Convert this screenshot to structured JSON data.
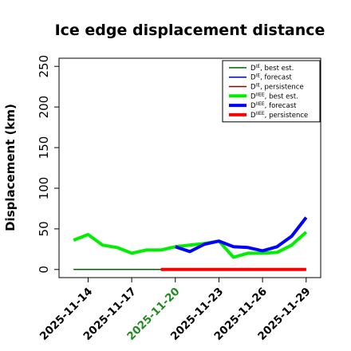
{
  "chart_data": {
    "type": "line",
    "title": "Ice edge displacement distance",
    "xlabel": "",
    "ylabel": "Displacement (km)",
    "x_dates": [
      "2025-11-13",
      "2025-11-14",
      "2025-11-15",
      "2025-11-16",
      "2025-11-17",
      "2025-11-18",
      "2025-11-19",
      "2025-11-20",
      "2025-11-21",
      "2025-11-22",
      "2025-11-23",
      "2025-11-24",
      "2025-11-25",
      "2025-11-26",
      "2025-11-27",
      "2025-11-28",
      "2025-11-29"
    ],
    "xlim": [
      "2025-11-12",
      "2025-11-30"
    ],
    "ylim": [
      -10,
      260
    ],
    "yticks": [
      0,
      50,
      100,
      150,
      200,
      250
    ],
    "xticks": [
      {
        "date": "2025-11-14",
        "label": "2025-11-14",
        "color": "#000000"
      },
      {
        "date": "2025-11-17",
        "label": "2025-11-17",
        "color": "#000000"
      },
      {
        "date": "2025-11-20",
        "label": "2025-11-20",
        "color": "#228b22"
      },
      {
        "date": "2025-11-23",
        "label": "2025-11-23",
        "color": "#000000"
      },
      {
        "date": "2025-11-26",
        "label": "2025-11-26",
        "color": "#000000"
      },
      {
        "date": "2025-11-29",
        "label": "2025-11-29",
        "color": "#000000"
      }
    ],
    "legend_position": "top-right",
    "series": [
      {
        "key": "die_best",
        "name_base": "D",
        "name_sup": "IE",
        "name_rest": ", best est.",
        "color": "#006400",
        "width": 1.5,
        "x": [
          "2025-11-13",
          "2025-11-14",
          "2025-11-15",
          "2025-11-16",
          "2025-11-17",
          "2025-11-18",
          "2025-11-19",
          "2025-11-20"
        ],
        "y": [
          0,
          0,
          0,
          0,
          0,
          0,
          0,
          0
        ]
      },
      {
        "key": "die_fc",
        "name_base": "D",
        "name_sup": "IE",
        "name_rest": ", forecast",
        "color": "#0000cd",
        "width": 1.5,
        "x": [
          "2025-11-20",
          "2025-11-21",
          "2025-11-22",
          "2025-11-23",
          "2025-11-24",
          "2025-11-25",
          "2025-11-26",
          "2025-11-27",
          "2025-11-28",
          "2025-11-29"
        ],
        "y": [
          0,
          0,
          0,
          0,
          0,
          0,
          0,
          0,
          0,
          0
        ]
      },
      {
        "key": "die_pers",
        "name_base": "D",
        "name_sup": "IE",
        "name_rest": ", persistence",
        "color": "#8b0000",
        "width": 1.5,
        "x": [
          "2025-11-20",
          "2025-11-21",
          "2025-11-22",
          "2025-11-23",
          "2025-11-24",
          "2025-11-25",
          "2025-11-26",
          "2025-11-27",
          "2025-11-28",
          "2025-11-29"
        ],
        "y": [
          0,
          0,
          0,
          0,
          0,
          0,
          0,
          0,
          0,
          0
        ]
      },
      {
        "key": "diiee_best",
        "name_base": "D",
        "name_sup": "IIEE",
        "name_rest": ", best est.",
        "color": "#00ee00",
        "width": 4,
        "x": [
          "2025-11-13",
          "2025-11-14",
          "2025-11-15",
          "2025-11-16",
          "2025-11-17",
          "2025-11-18",
          "2025-11-19",
          "2025-11-20",
          "2025-11-21",
          "2025-11-22",
          "2025-11-23",
          "2025-11-24",
          "2025-11-25",
          "2025-11-26",
          "2025-11-27",
          "2025-11-28",
          "2025-11-29"
        ],
        "y": [
          36,
          43,
          30,
          27,
          20,
          24,
          24,
          28,
          30,
          32,
          35,
          15,
          20,
          20,
          21,
          30,
          46
        ]
      },
      {
        "key": "diiee_fc",
        "name_base": "D",
        "name_sup": "IIEE",
        "name_rest": ", forecast",
        "color": "#0000ff",
        "width": 4,
        "x": [
          "2025-11-20",
          "2025-11-21",
          "2025-11-22",
          "2025-11-23",
          "2025-11-24",
          "2025-11-25",
          "2025-11-26",
          "2025-11-27",
          "2025-11-28",
          "2025-11-29"
        ],
        "y": [
          28,
          22,
          31,
          35,
          28,
          27,
          23,
          28,
          41,
          64
        ]
      },
      {
        "key": "diiee_pers",
        "name_base": "D",
        "name_sup": "IIEE",
        "name_rest": ", persistence",
        "color": "#ff0000",
        "width": 4,
        "x": [
          "2025-11-19",
          "2025-11-20",
          "2025-11-21",
          "2025-11-22",
          "2025-11-23",
          "2025-11-24",
          "2025-11-25",
          "2025-11-26",
          "2025-11-27",
          "2025-11-28",
          "2025-11-29"
        ],
        "y": [
          0,
          0,
          0,
          0,
          0,
          0,
          0,
          0,
          0,
          0,
          0
        ]
      }
    ]
  }
}
